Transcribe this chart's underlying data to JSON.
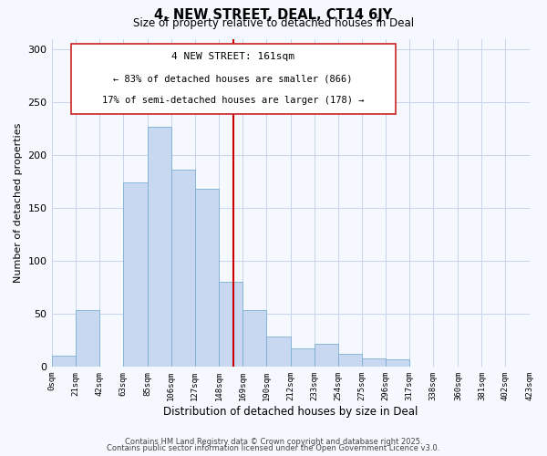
{
  "title": "4, NEW STREET, DEAL, CT14 6JY",
  "subtitle": "Size of property relative to detached houses in Deal",
  "bar_color": "#c8d8f0",
  "bar_edge_color": "#7aafd4",
  "bin_edges": [
    0,
    21,
    42,
    63,
    85,
    106,
    127,
    148,
    169,
    190,
    212,
    233,
    254,
    275,
    296,
    317,
    338,
    360,
    381,
    402,
    423
  ],
  "bar_heights": [
    10,
    53,
    0,
    174,
    227,
    186,
    168,
    80,
    53,
    28,
    17,
    21,
    12,
    8,
    7,
    0,
    0,
    0,
    0,
    0
  ],
  "x_tick_labels": [
    "0sqm",
    "21sqm",
    "42sqm",
    "63sqm",
    "85sqm",
    "106sqm",
    "127sqm",
    "148sqm",
    "169sqm",
    "190sqm",
    "212sqm",
    "233sqm",
    "254sqm",
    "275sqm",
    "296sqm",
    "317sqm",
    "338sqm",
    "360sqm",
    "381sqm",
    "402sqm",
    "423sqm"
  ],
  "ylabel": "Number of detached properties",
  "xlabel": "Distribution of detached houses by size in Deal",
  "ylim": [
    0,
    310
  ],
  "yticks": [
    0,
    50,
    100,
    150,
    200,
    250,
    300
  ],
  "property_line_x": 161,
  "property_line_color": "#cc0000",
  "annotation_title": "4 NEW STREET: 161sqm",
  "annotation_line1": "← 83% of detached houses are smaller (866)",
  "annotation_line2": "17% of semi-detached houses are larger (178) →",
  "footer_line1": "Contains HM Land Registry data © Crown copyright and database right 2025.",
  "footer_line2": "Contains public sector information licensed under the Open Government Licence v3.0.",
  "background_color": "#f5f8ff",
  "grid_color": "#c8d4e8"
}
